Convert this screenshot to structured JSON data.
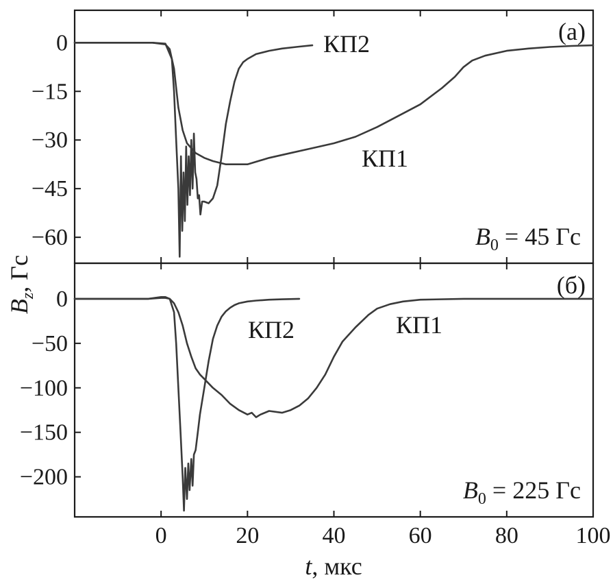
{
  "chart_data": [
    {
      "type": "line",
      "panel_label": "(a)",
      "condition_label": {
        "var": "B",
        "sub": "0",
        "rest": " = 45 Гс"
      },
      "x_ticks": [
        "0",
        "20",
        "40",
        "60",
        "80",
        "100"
      ],
      "y_ticks": [
        "0",
        "−15",
        "−30",
        "−45",
        "−60"
      ],
      "x_tick_values": [
        0,
        20,
        40,
        60,
        80,
        100
      ],
      "y_tick_values": [
        0,
        -15,
        -30,
        -45,
        -60
      ],
      "xlim": [
        -20,
        100
      ],
      "ylim": [
        -68,
        10
      ],
      "series": [
        {
          "name": "КП2",
          "x": [
            -20,
            -10,
            -2,
            1,
            2.5,
            3,
            3.5,
            4,
            4.3,
            4.6,
            4.9,
            5.2,
            5.5,
            5.8,
            6.1,
            6.4,
            6.7,
            7,
            7.3,
            7.6,
            7.9,
            8.2,
            8.5,
            8.8,
            9.1,
            9.5,
            10,
            11,
            12,
            13,
            14,
            15,
            16,
            17,
            18,
            19,
            20,
            22,
            25,
            28,
            32,
            35
          ],
          "y": [
            0,
            0,
            0,
            -0.3,
            -5,
            -15,
            -30,
            -45,
            -66,
            -35,
            -58,
            -40,
            -55,
            -32,
            -50,
            -35,
            -47,
            -30,
            -45,
            -28,
            -40,
            -42,
            -48,
            -47,
            -53,
            -49,
            -49,
            -49.5,
            -48,
            -44,
            -35,
            -25,
            -18,
            -12,
            -8,
            -6,
            -5,
            -3.5,
            -2.5,
            -1.8,
            -1.2,
            -0.8
          ]
        },
        {
          "name": "КП1",
          "x": [
            -20,
            -10,
            -2,
            1,
            2,
            3,
            4,
            5,
            6,
            8,
            10,
            12,
            15,
            20,
            25,
            30,
            35,
            40,
            45,
            50,
            55,
            60,
            65,
            68,
            70,
            72,
            75,
            80,
            85,
            90,
            95,
            100
          ],
          "y": [
            0,
            0,
            0,
            -0.5,
            -2,
            -8,
            -20,
            -27,
            -31,
            -34,
            -35.5,
            -36.5,
            -37.5,
            -37.5,
            -35.5,
            -34,
            -32.5,
            -31,
            -29,
            -26,
            -22.5,
            -19,
            -14,
            -10.5,
            -7.5,
            -5.5,
            -4,
            -2.5,
            -1.8,
            -1.3,
            -1,
            -0.8
          ]
        }
      ]
    },
    {
      "type": "line",
      "panel_label": "(б)",
      "condition_label": {
        "var": "B",
        "sub": "0",
        "rest": " = 225 Гс"
      },
      "x_ticks": [
        "0",
        "20",
        "40",
        "60",
        "80",
        "100"
      ],
      "y_ticks": [
        "0",
        "−50",
        "−100",
        "−150",
        "−200"
      ],
      "x_tick_values": [
        0,
        20,
        40,
        60,
        80,
        100
      ],
      "y_tick_values": [
        0,
        -50,
        -100,
        -150,
        -200
      ],
      "xlim": [
        -20,
        100
      ],
      "ylim": [
        -245,
        40
      ],
      "series": [
        {
          "name": "КП2",
          "x": [
            -20,
            -10,
            -3,
            0,
            1,
            2,
            3,
            3.5,
            4,
            4.5,
            5,
            5.3,
            5.6,
            6,
            6.3,
            6.6,
            7,
            7.3,
            7.6,
            8,
            8.5,
            9,
            10,
            11,
            12,
            13,
            14,
            15,
            16,
            17,
            18,
            20,
            22,
            25,
            28,
            32
          ],
          "y": [
            0,
            0,
            0,
            2,
            2,
            0,
            -15,
            -50,
            -100,
            -150,
            -200,
            -238,
            -190,
            -225,
            -185,
            -215,
            -180,
            -210,
            -175,
            -170,
            -150,
            -130,
            -100,
            -70,
            -45,
            -30,
            -20,
            -14,
            -10,
            -7,
            -5,
            -3,
            -2,
            -1,
            -0.5,
            0
          ]
        },
        {
          "name": "КП1",
          "x": [
            -20,
            -10,
            -3,
            0,
            1,
            2,
            3,
            4,
            5,
            6,
            7,
            8,
            9,
            10,
            12,
            14,
            16,
            18,
            20,
            21,
            22,
            23,
            25,
            28,
            30,
            32,
            34,
            36,
            38,
            40,
            42,
            45,
            48,
            50,
            53,
            56,
            60,
            70,
            80,
            90,
            100
          ],
          "y": [
            0,
            0,
            0,
            1,
            1,
            0,
            -5,
            -15,
            -30,
            -50,
            -65,
            -78,
            -85,
            -90,
            -100,
            -108,
            -118,
            -125,
            -130,
            -128,
            -133,
            -130,
            -126,
            -128,
            -125,
            -120,
            -112,
            -100,
            -85,
            -65,
            -48,
            -32,
            -18,
            -11,
            -6,
            -3,
            -1,
            0,
            0,
            0,
            0
          ]
        }
      ]
    }
  ],
  "series_annotations": {
    "a_kp2": "КП2",
    "a_kp1": "КП1",
    "b_kp2": "КП2",
    "b_kp1": "КП1"
  },
  "axes": {
    "y_title_var": "B",
    "y_title_sub": "z",
    "y_title_rest": ", Гс",
    "x_title_var": "t",
    "x_title_rest": ", мкс"
  }
}
